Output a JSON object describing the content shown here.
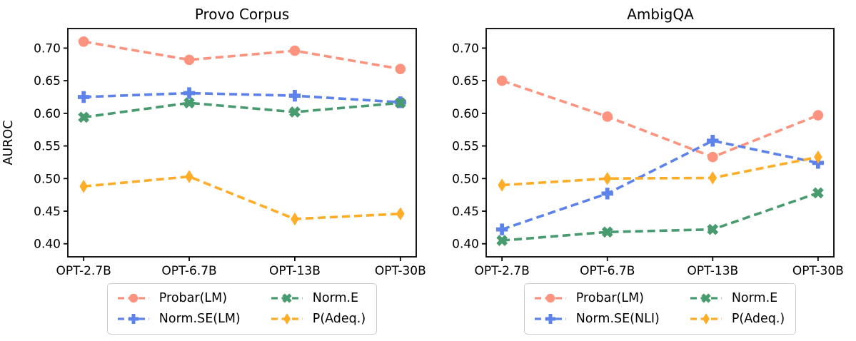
{
  "figure": {
    "background": "#ffffff",
    "axis_color": "#000000",
    "legend_border_color": "#cccccc"
  },
  "chart_data": [
    {
      "type": "line",
      "title": "Provo Corpus",
      "xlabel": "",
      "ylabel": "AUROC",
      "categories": [
        "OPT-2.7B",
        "OPT-6.7B",
        "OPT-13B",
        "OPT-30B"
      ],
      "ylim": [
        0.38,
        0.73
      ],
      "yticks": [
        0.4,
        0.45,
        0.5,
        0.55,
        0.6,
        0.65,
        0.7
      ],
      "grid": false,
      "line_style": "dashed",
      "legend_position": "bottom",
      "series": [
        {
          "name": "Probar(LM)",
          "marker": "circle",
          "color": "#FC937F",
          "values": [
            0.71,
            0.682,
            0.696,
            0.668
          ]
        },
        {
          "name": "Norm.SE(LM)",
          "marker": "plus",
          "color": "#5D82E9",
          "values": [
            0.625,
            0.631,
            0.627,
            0.617
          ]
        },
        {
          "name": "Norm.E",
          "marker": "x",
          "color": "#489B6E",
          "values": [
            0.594,
            0.616,
            0.602,
            0.616
          ]
        },
        {
          "name": "P(Adeq.)",
          "marker": "diamond",
          "color": "#FFAC26",
          "values": [
            0.488,
            0.503,
            0.438,
            0.446
          ]
        }
      ]
    },
    {
      "type": "line",
      "title": "AmbigQA",
      "xlabel": "",
      "ylabel": "",
      "categories": [
        "OPT-2.7B",
        "OPT-6.7B",
        "OPT-13B",
        "OPT-30B"
      ],
      "ylim": [
        0.38,
        0.73
      ],
      "yticks": [
        0.4,
        0.45,
        0.5,
        0.55,
        0.6,
        0.65,
        0.7
      ],
      "grid": false,
      "line_style": "dashed",
      "legend_position": "bottom",
      "series": [
        {
          "name": "Probar(LM)",
          "marker": "circle",
          "color": "#FC937F",
          "values": [
            0.65,
            0.595,
            0.533,
            0.597
          ]
        },
        {
          "name": "Norm.SE(NLI)",
          "marker": "plus",
          "color": "#5D82E9",
          "values": [
            0.422,
            0.477,
            0.558,
            0.524
          ]
        },
        {
          "name": "Norm.E",
          "marker": "x",
          "color": "#489B6E",
          "values": [
            0.405,
            0.418,
            0.422,
            0.478
          ]
        },
        {
          "name": "P(Adeq.)",
          "marker": "diamond",
          "color": "#FFAC26",
          "values": [
            0.49,
            0.5,
            0.501,
            0.533
          ]
        }
      ]
    }
  ]
}
